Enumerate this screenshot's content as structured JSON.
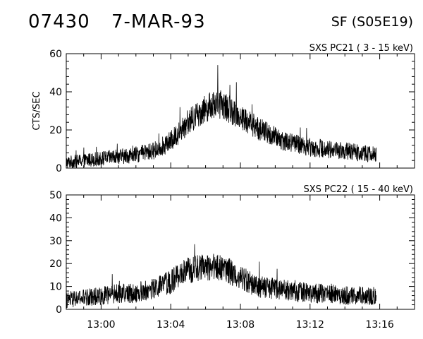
{
  "header": {
    "event_id": "07430",
    "date": "7-MAR-93",
    "flare_type": "SF (S05E19)"
  },
  "chart_data": [
    {
      "type": "line",
      "title": "SXS PC21  (  3 - 15 keV)",
      "ylabel": "CTS/SEC",
      "xlabel": "",
      "xlim": [
        "12:58",
        "13:18"
      ],
      "ylim": [
        0,
        60
      ],
      "yticks": [
        0,
        20,
        40,
        60
      ],
      "xticks": [
        "13:00",
        "13:04",
        "13:08",
        "13:12",
        "13:16"
      ],
      "data_end": "13:15.8",
      "grid": false,
      "series": [
        {
          "color": "#000000",
          "x": [
            "12:58",
            "12:59",
            "13:00",
            "13:01",
            "13:02",
            "13:03",
            "13:04",
            "13:04.5",
            "13:05",
            "13:05.5",
            "13:06",
            "13:06.5",
            "13:07",
            "13:07.5",
            "13:08",
            "13:08.5",
            "13:09",
            "13:10",
            "13:11",
            "13:12",
            "13:13",
            "13:14",
            "13:15",
            "13:15.8"
          ],
          "y": [
            3,
            4,
            5,
            6,
            7,
            9,
            14,
            19,
            24,
            28,
            31,
            34,
            33,
            30,
            27,
            24,
            21,
            16,
            13,
            11,
            10,
            9,
            8,
            7
          ]
        }
      ]
    },
    {
      "type": "line",
      "title": "SXS PC22  ( 15 - 40 keV)",
      "ylabel": "",
      "xlabel": "",
      "xlim": [
        "12:58",
        "13:18"
      ],
      "ylim": [
        0,
        50
      ],
      "yticks": [
        0,
        10,
        20,
        30,
        40,
        50
      ],
      "xticks": [
        "13:00",
        "13:04",
        "13:08",
        "13:12",
        "13:16"
      ],
      "data_end": "13:15.8",
      "grid": false,
      "series": [
        {
          "color": "#000000",
          "x": [
            "12:58",
            "12:59",
            "13:00",
            "13:01",
            "13:02",
            "13:03",
            "13:04",
            "13:04.5",
            "13:05",
            "13:05.5",
            "13:06",
            "13:06.5",
            "13:07",
            "13:07.5",
            "13:08",
            "13:08.5",
            "13:09",
            "13:10",
            "13:11",
            "13:12",
            "13:13",
            "13:14",
            "13:15",
            "13:15.8"
          ],
          "y": [
            4,
            5,
            6,
            7,
            7,
            9,
            12,
            15,
            17,
            18,
            18,
            19,
            18,
            16,
            14,
            12,
            10,
            9,
            8,
            7,
            7,
            6,
            6,
            6
          ]
        }
      ]
    }
  ]
}
